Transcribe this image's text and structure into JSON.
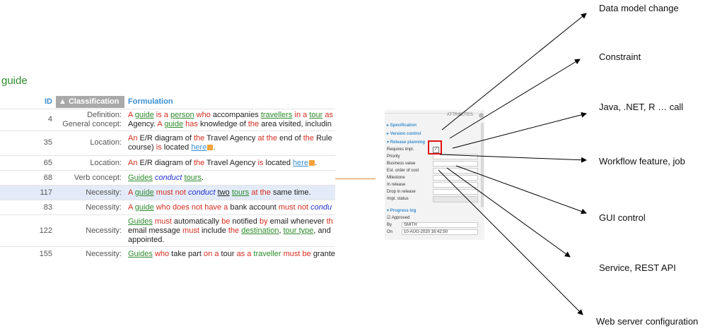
{
  "page": {
    "title": "guide"
  },
  "table": {
    "headers": {
      "id": "ID",
      "classification": "▲ Classification",
      "formulation": "Formulation"
    },
    "rows": [
      {
        "id": "4",
        "classification": [
          "Definition:",
          "General concept:"
        ]
      },
      {
        "id": "35",
        "classification": [
          "Location:"
        ]
      },
      {
        "id": "65",
        "classification": [
          "Location:"
        ]
      },
      {
        "id": "68",
        "classification": [
          "Verb concept:"
        ]
      },
      {
        "id": "117",
        "classification": [
          "Necessity:"
        ]
      },
      {
        "id": "83",
        "classification": [
          "Necessity:"
        ]
      },
      {
        "id": "122",
        "classification": [
          "Necessity:"
        ]
      },
      {
        "id": "155",
        "classification": [
          "Necessity:"
        ]
      }
    ]
  },
  "panel": {
    "title": "ATTRIBUTES",
    "sections": {
      "specification": "Specification",
      "version_control": "Version control",
      "release_planning": "Release planning",
      "progress_log": "Progress log"
    },
    "fields": [
      "Requires impl.",
      "Priority",
      "Business value",
      "Est. order of cost",
      "Milestone",
      "In release",
      "Drop in release",
      "Impl. status"
    ],
    "approved": "Approved",
    "by_label": "By",
    "by_value": "SMITH",
    "on_label": "On",
    "on_value": "10-AUG-2020 16:42:50"
  },
  "labels": [
    "Data model change",
    "Constraint",
    "Java, .NET, R … call",
    "Workflow feature, job",
    "GUI control",
    "Service, REST API",
    "Web server configuration"
  ]
}
